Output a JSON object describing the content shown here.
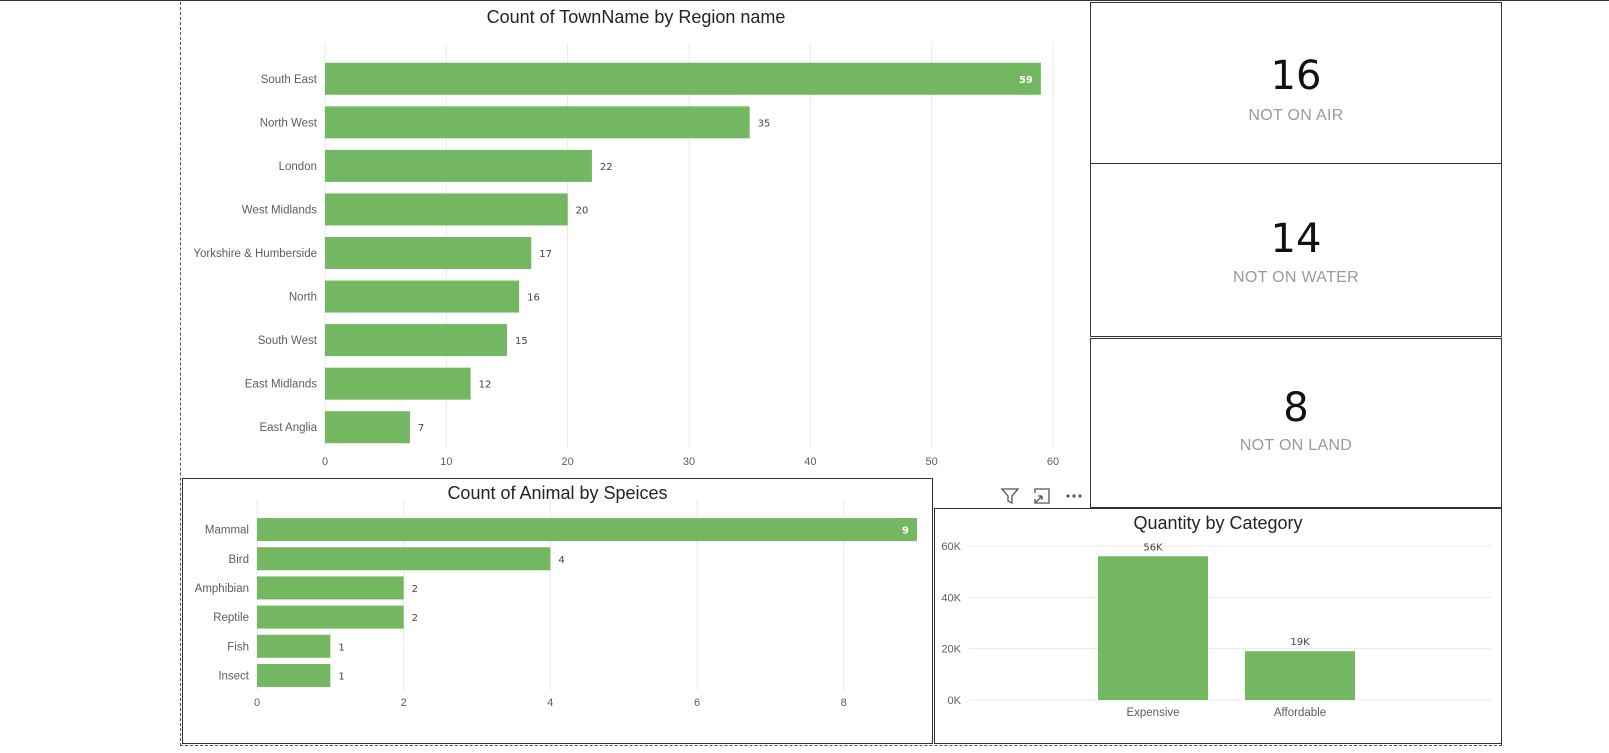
{
  "colors": {
    "bar": "#73b761",
    "grid": "#e8e8e8",
    "axis_text": "#605e5c"
  },
  "header_icons": [
    "filter-icon",
    "focus-mode-icon",
    "more-options-icon"
  ],
  "cards": [
    {
      "value": "16",
      "label": "NOT ON AIR"
    },
    {
      "value": "14",
      "label": "NOT ON WATER"
    },
    {
      "value": "8",
      "label": "NOT ON LAND"
    }
  ],
  "chart_data": [
    {
      "type": "bar",
      "orientation": "horizontal",
      "title": "Count of TownName by Region name",
      "categories": [
        "South East",
        "North West",
        "London",
        "West Midlands",
        "Yorkshire & Humberside",
        "North",
        "South West",
        "East Midlands",
        "East Anglia"
      ],
      "values": [
        59,
        35,
        22,
        20,
        17,
        16,
        15,
        12,
        7
      ],
      "xlim": [
        0,
        60
      ],
      "xticks": [
        0,
        10,
        20,
        30,
        40,
        50,
        60
      ],
      "grid": true
    },
    {
      "type": "bar",
      "orientation": "horizontal",
      "title": "Count of Animal by Speices",
      "categories": [
        "Mammal",
        "Bird",
        "Amphibian",
        "Reptile",
        "Fish",
        "Insect"
      ],
      "values": [
        9,
        4,
        2,
        2,
        1,
        1
      ],
      "xlim": [
        0,
        9
      ],
      "xticks": [
        0,
        2,
        4,
        6,
        8
      ],
      "grid": true
    },
    {
      "type": "bar",
      "orientation": "vertical",
      "title": "Quantity by Category",
      "categories": [
        "Expensive",
        "Affordable"
      ],
      "values": [
        56000,
        19000
      ],
      "data_labels": [
        "56K",
        "19K"
      ],
      "ylim": [
        0,
        60000
      ],
      "yticks": [
        0,
        20000,
        40000,
        60000
      ],
      "ytick_labels": [
        "0K",
        "20K",
        "40K",
        "60K"
      ],
      "grid": true
    }
  ]
}
